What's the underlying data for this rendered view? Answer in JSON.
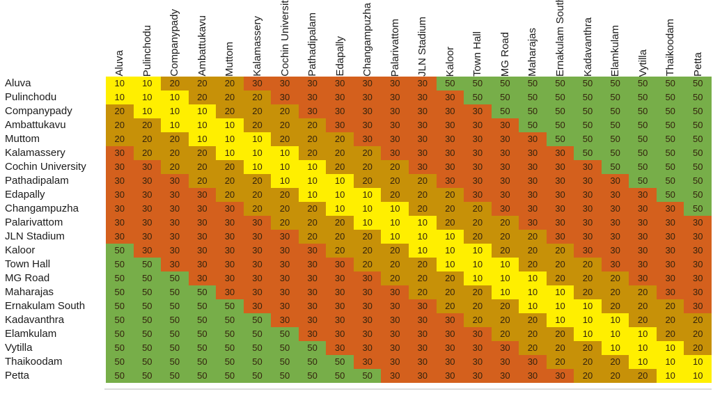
{
  "chart_data": {
    "type": "heatmap",
    "title": "",
    "description_note": "station-to-station fare matrix, 22x22, values are fares",
    "stations": [
      "Aluva",
      "Pulinchodu",
      "Companypady",
      "Ambattukavu",
      "Muttom",
      "Kalamassery",
      "Cochin University",
      "Pathadipalam",
      "Edapally",
      "Changampuzha",
      "Palarivattom",
      "JLN Stadium",
      "Kaloor",
      "Town Hall",
      "MG Road",
      "Maharajas",
      "Ernakulam South",
      "Kadavanthra",
      "Elamkulam",
      "Vytilla",
      "Thaikoodam",
      "Petta"
    ],
    "matrix": [
      [
        10,
        10,
        20,
        20,
        20,
        30,
        30,
        30,
        30,
        30,
        30,
        30,
        50,
        50,
        50,
        50,
        50,
        50,
        50,
        50,
        50,
        50
      ],
      [
        10,
        10,
        10,
        20,
        20,
        20,
        30,
        30,
        30,
        30,
        30,
        30,
        30,
        50,
        50,
        50,
        50,
        50,
        50,
        50,
        50,
        50
      ],
      [
        20,
        10,
        10,
        10,
        20,
        20,
        20,
        30,
        30,
        30,
        30,
        30,
        30,
        30,
        50,
        50,
        50,
        50,
        50,
        50,
        50,
        50
      ],
      [
        20,
        20,
        10,
        10,
        10,
        20,
        20,
        20,
        30,
        30,
        30,
        30,
        30,
        30,
        30,
        50,
        50,
        50,
        50,
        50,
        50,
        50
      ],
      [
        20,
        20,
        20,
        10,
        10,
        10,
        20,
        20,
        20,
        30,
        30,
        30,
        30,
        30,
        30,
        30,
        50,
        50,
        50,
        50,
        50,
        50
      ],
      [
        30,
        20,
        20,
        20,
        10,
        10,
        10,
        20,
        20,
        20,
        30,
        30,
        30,
        30,
        30,
        30,
        30,
        50,
        50,
        50,
        50,
        50
      ],
      [
        30,
        30,
        20,
        20,
        20,
        10,
        10,
        10,
        20,
        20,
        20,
        30,
        30,
        30,
        30,
        30,
        30,
        30,
        50,
        50,
        50,
        50
      ],
      [
        30,
        30,
        30,
        20,
        20,
        20,
        10,
        10,
        10,
        20,
        20,
        20,
        30,
        30,
        30,
        30,
        30,
        30,
        30,
        50,
        50,
        50
      ],
      [
        30,
        30,
        30,
        30,
        20,
        20,
        20,
        10,
        10,
        10,
        20,
        20,
        20,
        30,
        30,
        30,
        30,
        30,
        30,
        30,
        50,
        50
      ],
      [
        30,
        30,
        30,
        30,
        30,
        20,
        20,
        20,
        10,
        10,
        10,
        20,
        20,
        20,
        30,
        30,
        30,
        30,
        30,
        30,
        30,
        50
      ],
      [
        30,
        30,
        30,
        30,
        30,
        30,
        20,
        20,
        20,
        10,
        10,
        10,
        20,
        20,
        20,
        30,
        30,
        30,
        30,
        30,
        30,
        30
      ],
      [
        30,
        30,
        30,
        30,
        30,
        30,
        30,
        20,
        20,
        20,
        10,
        10,
        10,
        20,
        20,
        20,
        30,
        30,
        30,
        30,
        30,
        30
      ],
      [
        50,
        30,
        30,
        30,
        30,
        30,
        30,
        30,
        20,
        20,
        20,
        10,
        10,
        10,
        20,
        20,
        20,
        30,
        30,
        30,
        30,
        30
      ],
      [
        50,
        50,
        30,
        30,
        30,
        30,
        30,
        30,
        30,
        20,
        20,
        20,
        10,
        10,
        10,
        20,
        20,
        20,
        30,
        30,
        30,
        30
      ],
      [
        50,
        50,
        50,
        30,
        30,
        30,
        30,
        30,
        30,
        30,
        20,
        20,
        20,
        10,
        10,
        10,
        20,
        20,
        20,
        30,
        30,
        30
      ],
      [
        50,
        50,
        50,
        50,
        30,
        30,
        30,
        30,
        30,
        30,
        30,
        20,
        20,
        20,
        10,
        10,
        10,
        20,
        20,
        20,
        30,
        30
      ],
      [
        50,
        50,
        50,
        50,
        50,
        30,
        30,
        30,
        30,
        30,
        30,
        30,
        20,
        20,
        20,
        10,
        10,
        10,
        20,
        20,
        20,
        30
      ],
      [
        50,
        50,
        50,
        50,
        50,
        50,
        30,
        30,
        30,
        30,
        30,
        30,
        30,
        20,
        20,
        20,
        10,
        10,
        10,
        20,
        20,
        20
      ],
      [
        50,
        50,
        50,
        50,
        50,
        50,
        50,
        30,
        30,
        30,
        30,
        30,
        30,
        30,
        20,
        20,
        20,
        10,
        10,
        10,
        20,
        20
      ],
      [
        50,
        50,
        50,
        50,
        50,
        50,
        50,
        50,
        30,
        30,
        30,
        30,
        30,
        30,
        30,
        20,
        20,
        20,
        10,
        10,
        10,
        20
      ],
      [
        50,
        50,
        50,
        50,
        50,
        50,
        50,
        50,
        50,
        30,
        30,
        30,
        30,
        30,
        30,
        30,
        20,
        20,
        20,
        10,
        10,
        10
      ],
      [
        50,
        50,
        50,
        50,
        50,
        50,
        50,
        50,
        50,
        50,
        30,
        30,
        30,
        30,
        30,
        30,
        30,
        20,
        20,
        20,
        10,
        10
      ]
    ],
    "value_colors": {
      "10": "#ffef00",
      "20": "#c79108",
      "30": "#d4601d",
      "50": "#77ae49"
    },
    "layout": {
      "grid": false,
      "column_labels_rotated_degrees": 90,
      "legend": "none"
    }
  }
}
